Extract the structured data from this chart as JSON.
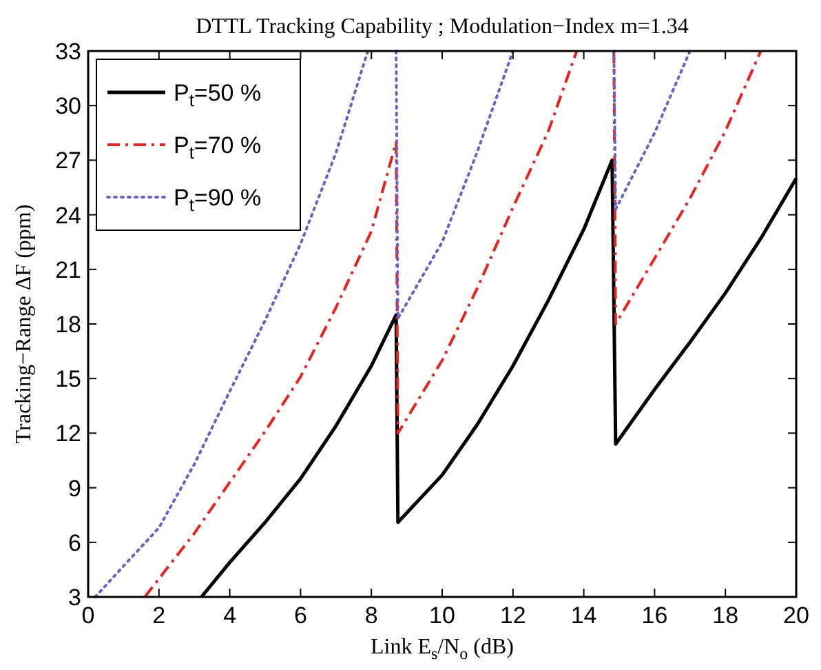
{
  "chart_data": {
    "type": "line",
    "title": "DTTL Tracking Capability ;  Modulation−Index m=1.34",
    "xlabel": "Link  E$_{s}$/N$_{o}$ (dB)",
    "ylabel": "Tracking−Range    ΔF (ppm)",
    "xlim": [
      0,
      20
    ],
    "ylim": [
      3,
      33
    ],
    "xticks": [
      0,
      2,
      4,
      6,
      8,
      10,
      12,
      14,
      16,
      18,
      20
    ],
    "yticks": [
      3,
      6,
      9,
      12,
      15,
      18,
      21,
      24,
      27,
      30,
      33
    ],
    "grid": false,
    "legend": "top left",
    "series": [
      {
        "name": "P$_{t}$=50 %",
        "color": "#000000",
        "line_style": "solid",
        "x": [
          3.2,
          4,
          5,
          6,
          7,
          8,
          8.7,
          8.75,
          10,
          11,
          12,
          13,
          14,
          14.8,
          14.9,
          16,
          17,
          18,
          19,
          20
        ],
        "values": [
          3,
          4.9,
          7.1,
          9.5,
          12.4,
          15.7,
          18.5,
          7.1,
          9.7,
          12.5,
          15.7,
          19.3,
          23.2,
          27,
          11.4,
          14.4,
          17,
          19.7,
          22.7,
          26
        ]
      },
      {
        "name": "P$_{t}$=70 %",
        "color": "#e8231f",
        "line_style": "dashdot",
        "x": [
          1.6,
          2,
          3,
          4,
          5,
          6,
          7,
          8,
          8.7,
          8.75,
          10,
          11,
          12,
          13,
          13.8,
          null,
          14.85,
          14.9,
          16,
          17,
          18,
          19
        ],
        "values": [
          3,
          4,
          6.5,
          9.3,
          12.1,
          15.1,
          18.9,
          23.1,
          28,
          12,
          16,
          20,
          24.4,
          28.6,
          33,
          null,
          33,
          18,
          21.6,
          24.9,
          28.6,
          33
        ]
      },
      {
        "name": "P$_{t}$=90 %",
        "color": "#6464c8",
        "line_style": "dotted",
        "x": [
          0.2,
          1,
          2,
          3,
          4,
          5,
          6,
          7,
          7.9,
          null,
          8.7,
          8.75,
          10,
          11,
          12,
          null,
          14.85,
          14.9,
          16,
          17
        ],
        "values": [
          3,
          4.7,
          6.8,
          10.3,
          14.3,
          18.2,
          22.4,
          27.4,
          33,
          null,
          33,
          18.3,
          22.5,
          27.5,
          33,
          null,
          33,
          24.3,
          28.5,
          33
        ]
      }
    ]
  }
}
